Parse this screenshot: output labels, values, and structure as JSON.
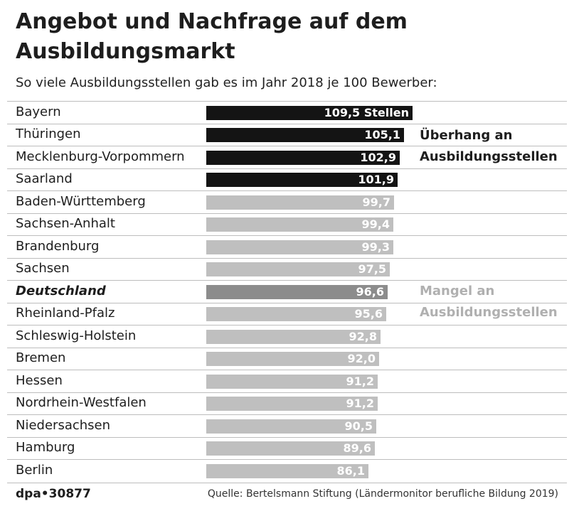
{
  "header": {
    "title": "Angebot und Nachfrage auf dem Ausbildungsmarkt",
    "subtitle": "So viele Ausbildungsstellen gab es im Jahr 2018 je 100 Bewerber:"
  },
  "annotations": {
    "surplus": "Überhang an Ausbildungsstellen",
    "deficit": "Mangel an Ausbildungsstellen"
  },
  "footer": {
    "brand": "dpa•30877",
    "source": "Quelle: Bertelsmann Stiftung (Ländermonitor berufliche Bildung 2019)"
  },
  "colors": {
    "surplus": "#141414",
    "deficit": "#bfbfbf",
    "national": "#8c8c8c"
  },
  "chart_data": {
    "type": "bar",
    "orientation": "horizontal",
    "title": "Angebot und Nachfrage auf dem Ausbildungsmarkt",
    "subtitle": "So viele Ausbildungsstellen gab es im Jahr 2018 je 100 Bewerber:",
    "xlim": [
      0,
      110
    ],
    "unit_suffix_first": " Stellen",
    "categories": [
      "Bayern",
      "Thüringen",
      "Mecklenburg-Vorpommern",
      "Saarland",
      "Baden-Württemberg",
      "Sachsen-Anhalt",
      "Brandenburg",
      "Sachsen",
      "Deutschland",
      "Rheinland-Pfalz",
      "Schleswig-Holstein",
      "Bremen",
      "Hessen",
      "Nordrhein-Westfalen",
      "Niedersachsen",
      "Hamburg",
      "Berlin"
    ],
    "values": [
      109.5,
      105.1,
      102.9,
      101.9,
      99.7,
      99.4,
      99.3,
      97.5,
      96.6,
      95.6,
      92.8,
      92.0,
      91.2,
      91.2,
      90.5,
      89.6,
      86.1
    ],
    "value_labels": [
      "109,5 Stellen",
      "105,1",
      "102,9",
      "101,9",
      "99,7",
      "99,4",
      "99,3",
      "97,5",
      "96,6",
      "95,6",
      "92,8",
      "92,0",
      "91,2",
      "91,2",
      "90,5",
      "89,6",
      "86,1"
    ],
    "highlight": "Deutschland",
    "threshold": 100
  }
}
